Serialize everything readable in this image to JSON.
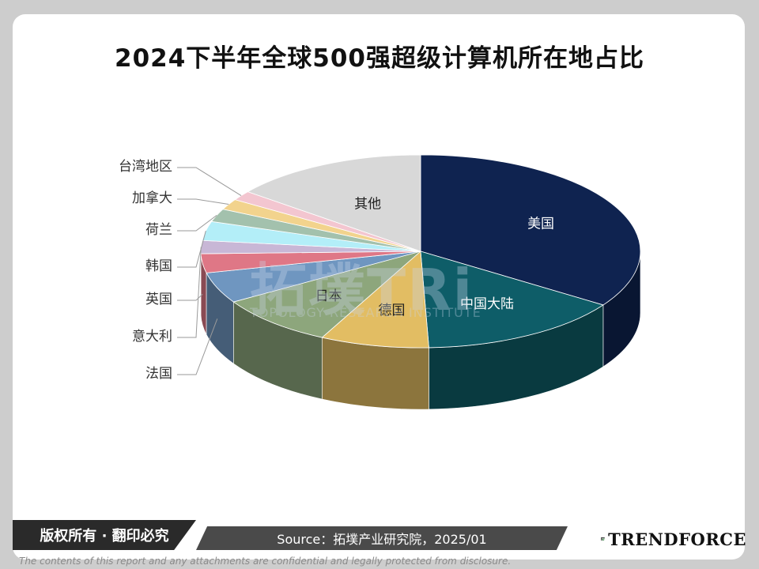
{
  "chart_data": {
    "type": "pie",
    "title": "2024下半年全球500强超级计算机所在地占比",
    "slices": [
      {
        "label": "美国",
        "value": 34.4,
        "color": "#0f2350"
      },
      {
        "label": "中国大陆",
        "value": 15.0,
        "color": "#0e5d68"
      },
      {
        "label": "德国",
        "value": 8.0,
        "color": "#e2bd63"
      },
      {
        "label": "日本",
        "value": 8.8,
        "color": "#8da67c"
      },
      {
        "label": "法国",
        "value": 5.2,
        "color": "#6f96c0"
      },
      {
        "label": "英国",
        "value": 3.2,
        "color": "#df7786"
      },
      {
        "label": "意大利",
        "value": 2.2,
        "color": "#c8b7d6"
      },
      {
        "label": "韩国",
        "value": 3.2,
        "color": "#b3eef8"
      },
      {
        "label": "荷兰",
        "value": 2.2,
        "color": "#a3c1ad"
      },
      {
        "label": "加拿大",
        "value": 1.8,
        "color": "#f2d38d"
      },
      {
        "label": "台湾地区",
        "value": 1.6,
        "color": "#f3c6d0"
      },
      {
        "label": "其他",
        "value": 14.4,
        "color": "#d8d8d8"
      }
    ],
    "legend": "none"
  },
  "footer": {
    "copyright": "版权所有 · 翻印必究",
    "source": "Source：拓墣产业研究院，2025/01",
    "brand": "TRENDFORCE",
    "disclaimer": "The contents of this report and any attachments are confidential and legally protected from disclosure."
  },
  "watermark": {
    "mark": "拓墣TRi",
    "text": "TOPOLOGY RESEARCH INSTITUTE"
  },
  "colors": {
    "background": "#cdcdcd",
    "card": "#ffffff",
    "footer_dark": "#2a2a2a",
    "footer_mid": "#4a4a4a",
    "brand_green": "#2e7d3a"
  }
}
